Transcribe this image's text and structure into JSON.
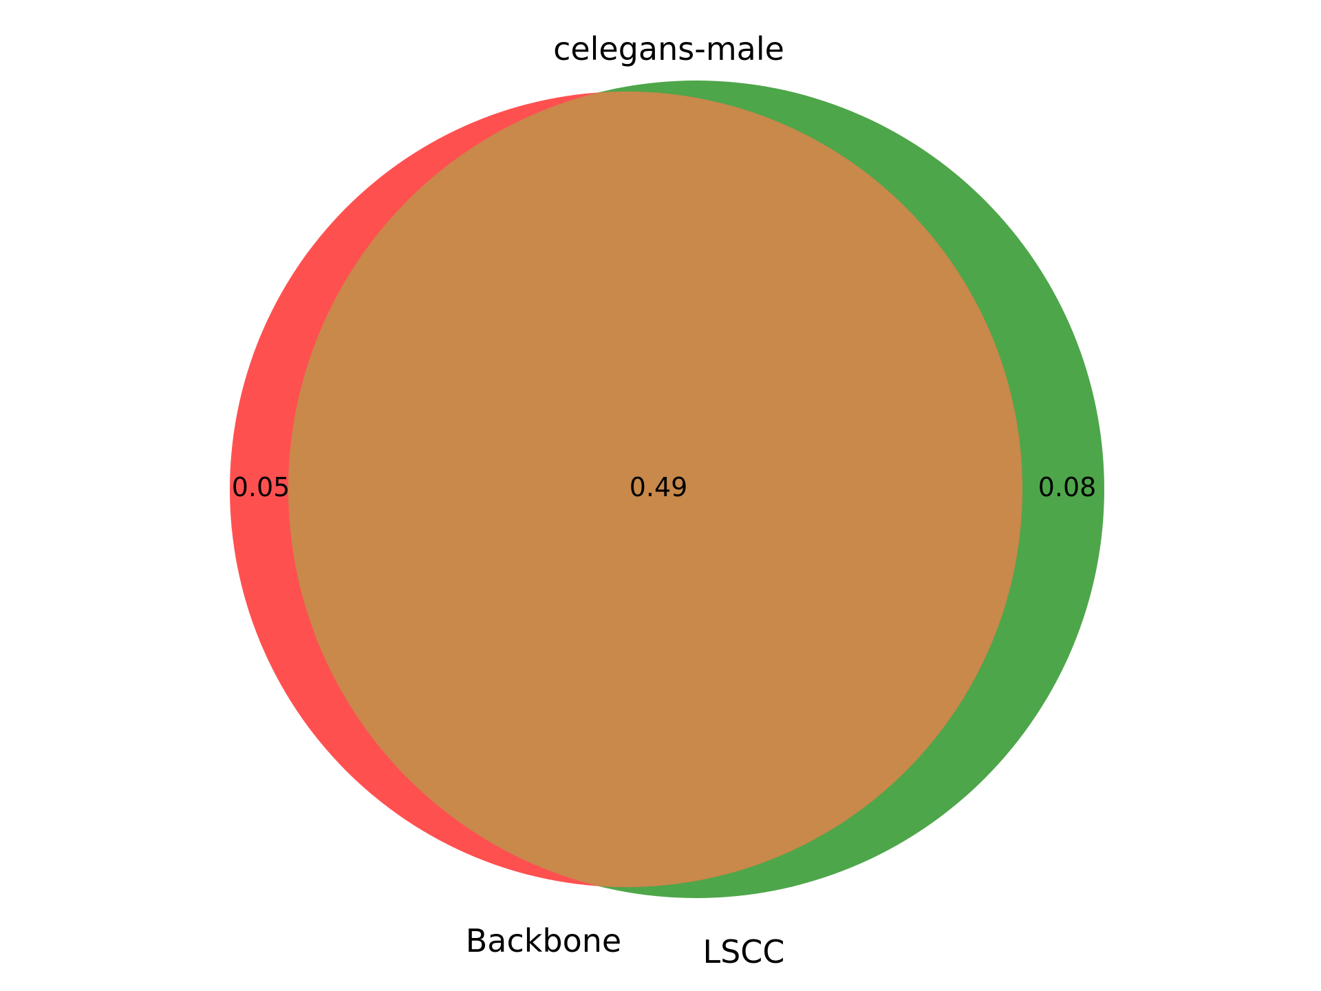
{
  "title": "celegans-male",
  "sets": [
    {
      "name": "Backbone",
      "color": "#ff5050"
    },
    {
      "name": "LSCC",
      "color": "#4ea64a"
    }
  ],
  "overlap_color": "#c8894b",
  "regions": {
    "backbone_only": "0.05",
    "intersection": "0.49",
    "lscc_only": "0.08"
  }
}
